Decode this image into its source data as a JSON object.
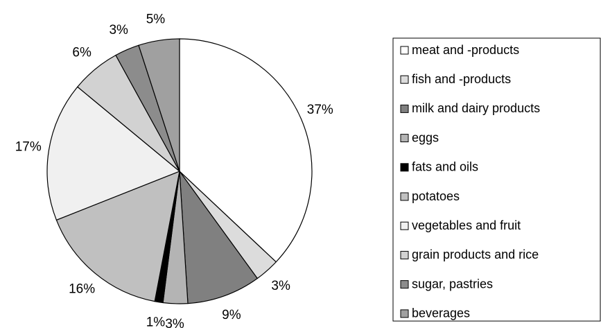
{
  "chart_data": {
    "type": "pie",
    "categories": [
      "meat and -products",
      "fish and -products",
      "milk and dairy products",
      "eggs",
      "fats and oils",
      "potatoes",
      "vegetables and fruit",
      "grain products and rice",
      "sugar, pastries",
      "beverages"
    ],
    "values": [
      37,
      3,
      9,
      3,
      1,
      16,
      17,
      6,
      3,
      5
    ],
    "value_labels": [
      "37%",
      "3%",
      "9%",
      "3%",
      "1%",
      "16%",
      "17%",
      "6%",
      "3%",
      "5%"
    ],
    "colors": [
      "#ffffff",
      "#dcdcdc",
      "#808080",
      "#b4b4b4",
      "#000000",
      "#c0c0c0",
      "#f0f0f0",
      "#d2d2d2",
      "#8c8c8c",
      "#a0a0a0"
    ],
    "legend": "right"
  }
}
